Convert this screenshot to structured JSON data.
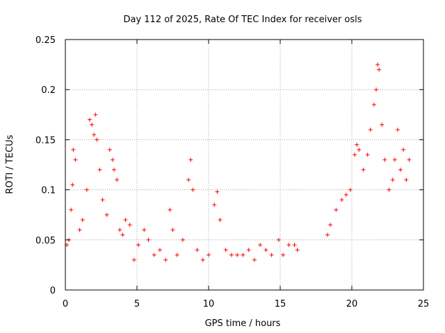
{
  "chart_data": {
    "type": "scatter",
    "title": "Day 112 of 2025, Rate Of TEC Index for receiver osls",
    "xlabel": "GPS time / hours",
    "ylabel": "ROTI / TECUs",
    "xlim": [
      0,
      25
    ],
    "ylim": [
      0,
      0.25
    ],
    "x_ticks": [
      0,
      5,
      10,
      15,
      20,
      25
    ],
    "x_tick_labels": [
      "0",
      "5",
      "10",
      "15",
      "20",
      "25"
    ],
    "y_ticks": [
      0,
      0.05,
      0.1,
      0.15,
      0.2,
      0.25
    ],
    "y_tick_labels": [
      "0",
      "0.05",
      "0.1",
      "0.15",
      "0.2",
      "0.25"
    ],
    "grid": true,
    "marker": "+",
    "series": [
      {
        "name": "ROTI",
        "color": "#ff0000",
        "x": [
          0.1,
          0.25,
          0.4,
          0.5,
          0.55,
          0.7,
          1.0,
          1.2,
          1.5,
          1.7,
          1.85,
          2.0,
          2.1,
          2.2,
          2.4,
          2.6,
          2.9,
          3.1,
          3.3,
          3.4,
          3.6,
          3.8,
          4.0,
          4.2,
          4.5,
          4.8,
          5.1,
          5.5,
          5.8,
          6.2,
          6.6,
          7.0,
          7.3,
          7.5,
          7.8,
          8.2,
          8.6,
          8.75,
          8.9,
          9.2,
          9.6,
          10.0,
          10.4,
          10.6,
          10.8,
          11.2,
          11.6,
          12.0,
          12.4,
          12.8,
          13.2,
          13.6,
          14.0,
          14.4,
          14.9,
          15.2,
          15.6,
          16.0,
          16.2,
          18.3,
          18.5,
          18.9,
          19.3,
          19.6,
          19.9,
          20.2,
          20.35,
          20.5,
          20.8,
          21.1,
          21.3,
          21.55,
          21.7,
          21.8,
          21.9,
          22.1,
          22.3,
          22.6,
          22.85,
          23.0,
          23.2,
          23.4,
          23.6,
          23.8,
          24.0
        ],
        "y": [
          0.045,
          0.05,
          0.08,
          0.105,
          0.14,
          0.13,
          0.06,
          0.07,
          0.1,
          0.17,
          0.165,
          0.155,
          0.175,
          0.15,
          0.12,
          0.09,
          0.075,
          0.14,
          0.13,
          0.12,
          0.11,
          0.06,
          0.055,
          0.07,
          0.065,
          0.03,
          0.045,
          0.06,
          0.05,
          0.035,
          0.04,
          0.03,
          0.08,
          0.06,
          0.035,
          0.05,
          0.11,
          0.13,
          0.1,
          0.04,
          0.03,
          0.035,
          0.085,
          0.098,
          0.07,
          0.04,
          0.035,
          0.035,
          0.035,
          0.04,
          0.03,
          0.045,
          0.04,
          0.035,
          0.05,
          0.035,
          0.045,
          0.045,
          0.04,
          0.055,
          0.065,
          0.08,
          0.09,
          0.095,
          0.1,
          0.135,
          0.145,
          0.14,
          0.12,
          0.135,
          0.16,
          0.185,
          0.2,
          0.225,
          0.22,
          0.165,
          0.13,
          0.1,
          0.11,
          0.13,
          0.16,
          0.12,
          0.14,
          0.11,
          0.13
        ]
      }
    ]
  }
}
